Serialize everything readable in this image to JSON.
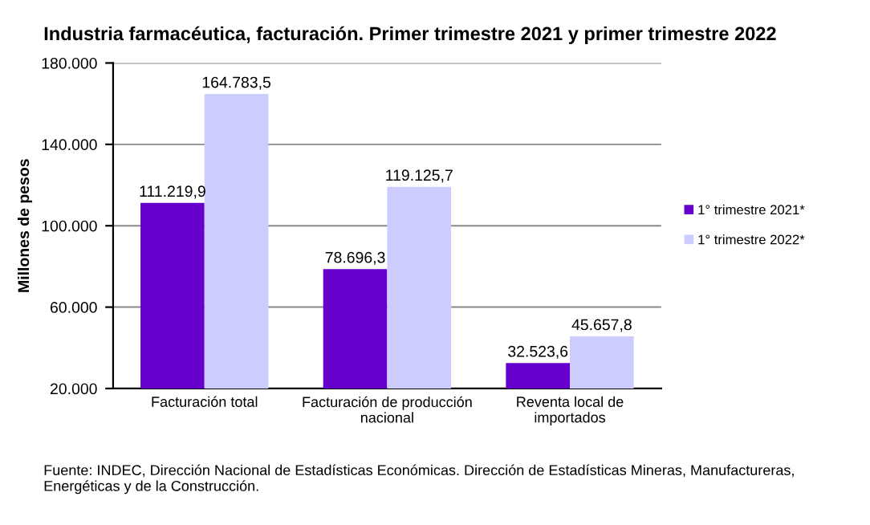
{
  "chart_data": {
    "type": "bar",
    "title": "Industria farmacéutica, facturación. Primer trimestre 2021 y primer trimestre 2022",
    "ylabel": "Millones de pesos",
    "categories": [
      "Facturación total",
      "Facturación de producción\nnacional",
      "Reventa local de\nimportados"
    ],
    "series": [
      {
        "name": "1° trimestre 2021*",
        "color": "#6600cc",
        "values": [
          111219.9,
          78696.3,
          32523.6
        ],
        "value_labels": [
          "111.219,9",
          "78.696,3",
          "32.523,6"
        ]
      },
      {
        "name": "1° trimestre 2022*",
        "color": "#ccccff",
        "values": [
          164783.5,
          119125.7,
          45657.8
        ],
        "value_labels": [
          "164.783,5",
          "119.125,7",
          "45.657,8"
        ]
      }
    ],
    "ylim": [
      20000,
      180000
    ],
    "yticks": [
      {
        "value": 20000,
        "label": "20.000"
      },
      {
        "value": 60000,
        "label": "60.000"
      },
      {
        "value": 100000,
        "label": "100.000"
      },
      {
        "value": 140000,
        "label": "140.000"
      },
      {
        "value": 180000,
        "label": "180.000"
      }
    ],
    "grid": "y",
    "legend": "right",
    "annotations": [
      "Fuente: INDEC, Dirección Nacional de Estadísticas Económicas. Dirección de Estadísticas Mineras, Manufactureras, Energéticas y de la Construcción."
    ]
  }
}
